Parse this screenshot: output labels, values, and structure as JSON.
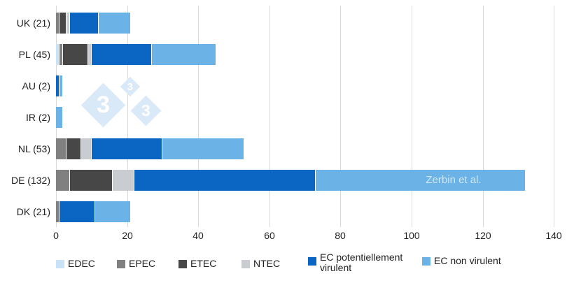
{
  "chart_data": {
    "type": "bar",
    "orientation": "horizontal",
    "stacked": true,
    "title": "",
    "xlabel": "",
    "ylabel": "",
    "xlim": [
      0,
      140
    ],
    "x_ticks": [
      0,
      20,
      40,
      60,
      80,
      100,
      120,
      140
    ],
    "grid": true,
    "legend_position": "bottom",
    "categories": [
      "UK (21)",
      "PL (45)",
      "AU (2)",
      "IR (2)",
      "NL (53)",
      "DE (132)",
      "DK (21)"
    ],
    "category_totals": [
      21,
      45,
      2,
      2,
      53,
      132,
      21
    ],
    "series": [
      {
        "name": "EDEC",
        "color": "#c9e2f5",
        "values": [
          0,
          1,
          0,
          0,
          0,
          0,
          0
        ]
      },
      {
        "name": "EPEC",
        "color": "#808080",
        "values": [
          1,
          1,
          0,
          0,
          3,
          4,
          1
        ]
      },
      {
        "name": "ETEC",
        "color": "#474747",
        "values": [
          2,
          7,
          0,
          0,
          4,
          12,
          0
        ]
      },
      {
        "name": "NTEC",
        "color": "#c9ccd0",
        "values": [
          1,
          1,
          0,
          0,
          3,
          6,
          0
        ]
      },
      {
        "name": "EC potentiellement virulent",
        "color": "#0a66c2",
        "values": [
          8,
          17,
          1,
          0,
          20,
          51,
          10
        ]
      },
      {
        "name": "EC non virulent",
        "color": "#6bb3e6",
        "values": [
          9,
          18,
          1,
          2,
          23,
          59,
          10
        ]
      }
    ]
  },
  "watermark": {
    "logo_threes": [
      "3",
      "3",
      "3"
    ],
    "attribution": "Zerbin et al."
  },
  "colors": {
    "gridline": "#d9d9d9",
    "text": "#222222",
    "diamond": "#d9e9f7",
    "background": "#ffffff"
  }
}
